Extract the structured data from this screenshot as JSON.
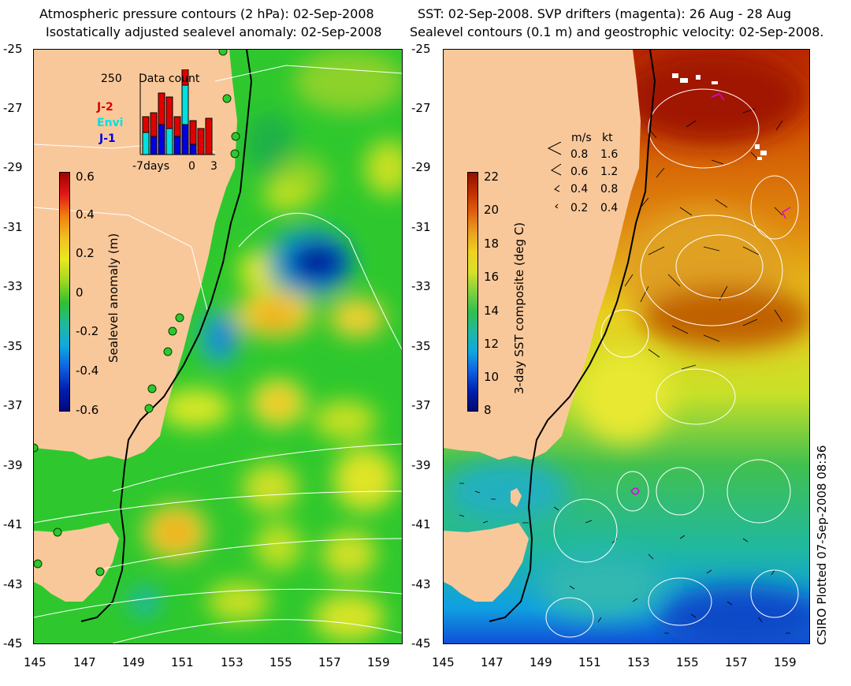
{
  "left_panel": {
    "title_line1": "Atmospheric pressure contours (2 hPa): 02-Sep-2008",
    "title_line2": "Isostatically adjusted sealevel anomaly: 02-Sep-2008",
    "lat_ticks": [
      "-25",
      "-27",
      "-29",
      "-31",
      "-33",
      "-35",
      "-37",
      "-39",
      "-41",
      "-43",
      "-45"
    ],
    "lon_ticks": [
      "145",
      "147",
      "149",
      "151",
      "153",
      "155",
      "157",
      "159"
    ],
    "colorbar": {
      "title": "Sealevel anomaly (m)",
      "labels": [
        "0.6",
        "0.4",
        "0.2",
        "0",
        "-0.2",
        "-0.4",
        "-0.6"
      ],
      "range": [
        -0.6,
        0.6
      ]
    },
    "inset": {
      "title": "Data count",
      "ymax_label": "250",
      "x_labels": [
        "-7days",
        "0",
        "3"
      ],
      "legend": [
        {
          "label": "J-2",
          "color": "#e00000"
        },
        {
          "label": "Envi",
          "color": "#00e0e0"
        },
        {
          "label": "J-1",
          "color": "#0000e0"
        }
      ]
    }
  },
  "right_panel": {
    "title_line1": "SST: 02-Sep-2008. SVP drifters (magenta): 26 Aug - 28 Aug",
    "title_line2": "Sealevel contours (0.1 m) and geostrophic velocity: 02-Sep-2008.",
    "lat_ticks": [
      "-25",
      "-27",
      "-29",
      "-31",
      "-33",
      "-35",
      "-37",
      "-39",
      "-41",
      "-43",
      "-45"
    ],
    "lon_ticks": [
      "145",
      "147",
      "149",
      "151",
      "153",
      "155",
      "157",
      "159"
    ],
    "colorbar": {
      "title": "3-day SST composite (deg C)",
      "labels": [
        "22",
        "20",
        "18",
        "16",
        "14",
        "12",
        "10",
        "8"
      ],
      "range": [
        8,
        22
      ]
    },
    "velocity_legend": {
      "header_ms": "m/s",
      "header_kt": "kt",
      "rows": [
        {
          "ms": "0.8",
          "kt": "1.6"
        },
        {
          "ms": "0.6",
          "kt": "1.2"
        },
        {
          "ms": "0.4",
          "kt": "0.8"
        },
        {
          "ms": "0.2",
          "kt": "0.4"
        }
      ]
    }
  },
  "credit": "CSIRO Plotted 07-Sep-2008 08:36",
  "colors": {
    "land": "#f9c89a",
    "sla_low": "#0018a0",
    "sla_mid": "#2ec82e",
    "sla_high": "#f0a000",
    "sst_warm": "#b02000",
    "sst_cold": "#1060e0"
  }
}
